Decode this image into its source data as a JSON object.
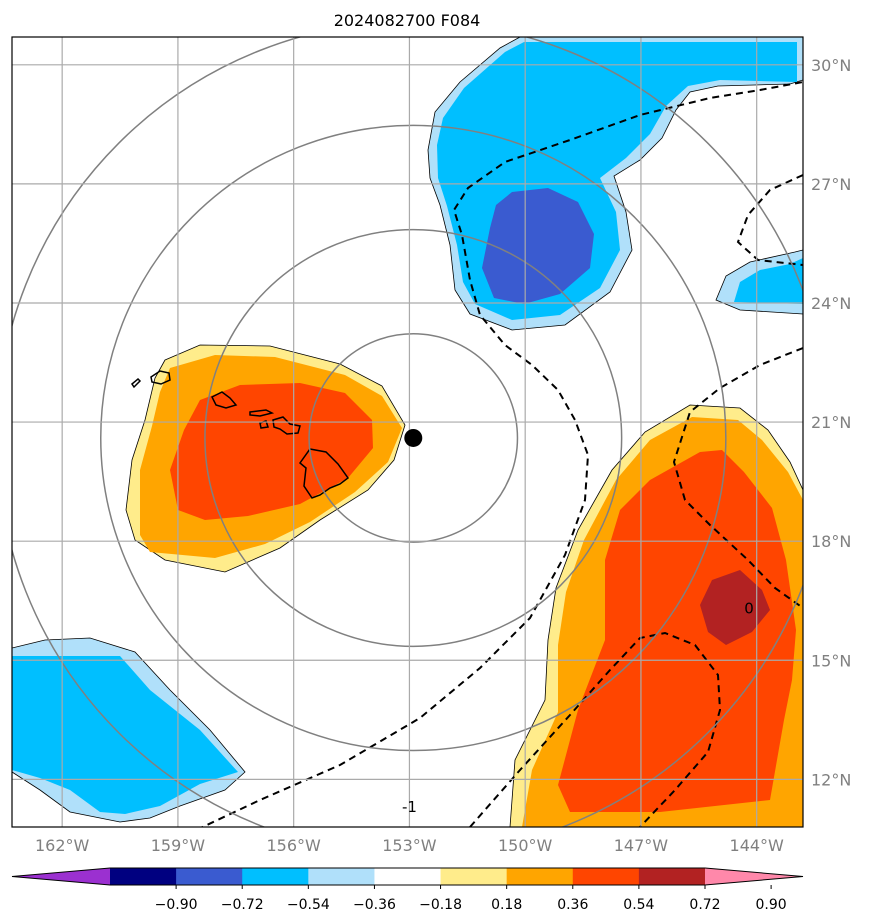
{
  "title": "2024082700 F084",
  "map": {
    "lon_range": [
      -163.3,
      -142.8
    ],
    "lat_range": [
      10.8,
      30.7
    ],
    "lon_ticks": [
      {
        "value": -162,
        "label": "162°W"
      },
      {
        "value": -159,
        "label": "159°W"
      },
      {
        "value": -156,
        "label": "156°W"
      },
      {
        "value": -153,
        "label": "153°W"
      },
      {
        "value": -150,
        "label": "150°W"
      },
      {
        "value": -147,
        "label": "147°W"
      },
      {
        "value": -144,
        "label": "144°W"
      }
    ],
    "lat_ticks": [
      {
        "value": 30,
        "label": "30°N"
      },
      {
        "value": 27,
        "label": "27°N"
      },
      {
        "value": 24,
        "label": "24°N"
      },
      {
        "value": 21,
        "label": "21°N"
      },
      {
        "value": 18,
        "label": "18°N"
      },
      {
        "value": 15,
        "label": "15°N"
      },
      {
        "value": 12,
        "label": "12°N"
      }
    ],
    "grid": true,
    "storm_center": {
      "lon": -152.9,
      "lat": 20.6
    },
    "range_rings_deg": [
      2.7,
      5.4,
      8.1,
      10.8
    ],
    "contour_labels": [
      {
        "text": "0",
        "lon": -144.2,
        "lat": 16.3
      },
      {
        "text": "-1",
        "lon": -153.0,
        "lat": 11.3
      }
    ]
  },
  "colorbar": {
    "ticks": [
      "−0.90",
      "−0.72",
      "−0.54",
      "−0.36",
      "−0.18",
      "0.18",
      "0.36",
      "0.54",
      "0.72",
      "0.90"
    ],
    "colors": [
      "#9b30d0",
      "#000080",
      "#3a5bd0",
      "#00bfff",
      "#b0e0fa",
      "#ffffff",
      "#ffec8b",
      "#ffa500",
      "#ff4500",
      "#b22222",
      "#ff88aa"
    ]
  }
}
